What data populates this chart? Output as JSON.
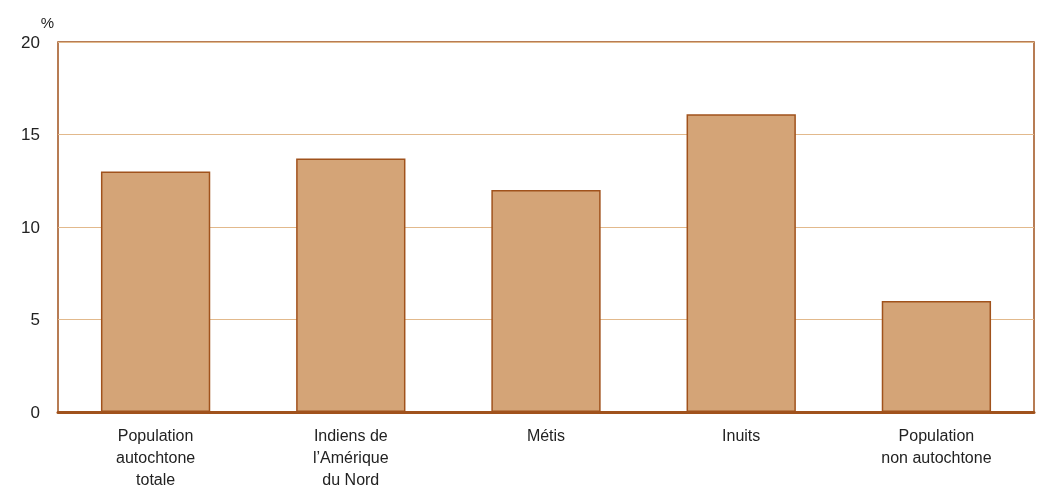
{
  "chart_data": {
    "type": "bar",
    "ylabel": "%",
    "categories": [
      "Population\nautochtone\ntotale",
      "Indiens de\nl’Amérique\ndu Nord",
      "Métis",
      "Inuits",
      "Population\nnon autochtone"
    ],
    "values": [
      13.0,
      13.7,
      12.0,
      16.1,
      6.0
    ],
    "color": "#d4a477",
    "ylim": [
      0,
      20
    ],
    "yticks": [
      0,
      5,
      10,
      15,
      20
    ],
    "grid": true
  }
}
